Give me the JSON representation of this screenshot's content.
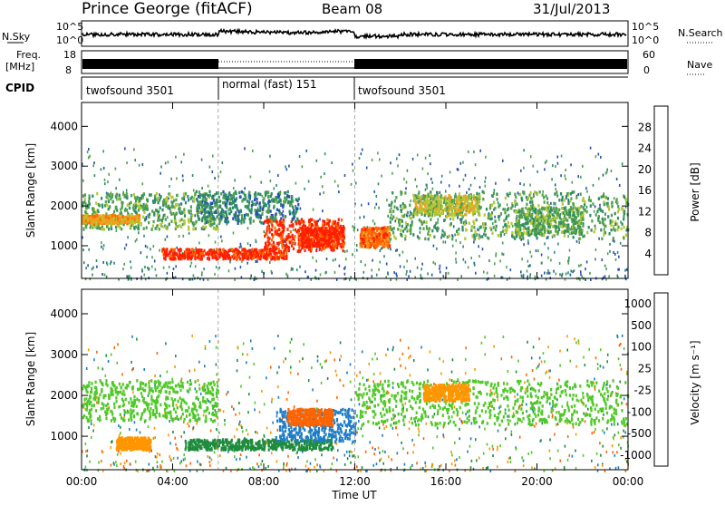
{
  "header": {
    "station": "Prince George (fitACF)",
    "beam": "Beam 08",
    "date": "31/Jul/2013"
  },
  "top_panels": {
    "nsky_label": "N.Sky",
    "nsky_ticks": [
      "10^5",
      "10^0"
    ],
    "nsearch_label": "N.Search",
    "nsearch_ticks": [
      "10^5",
      "10^0"
    ],
    "freq_label_line1": "Freq.",
    "freq_label_line2": "[MHz]",
    "freq_ticks": [
      "18",
      "8"
    ],
    "nave_label": "Nave",
    "nave_ticks": [
      "60",
      "0"
    ],
    "cpid_label": "CPID",
    "cpid_segments": [
      {
        "label": "twofsound 3501",
        "start_hour": 0,
        "end_hour": 6
      },
      {
        "label": "normal (fast) 151",
        "start_hour": 6,
        "end_hour": 12
      },
      {
        "label": "twofsound 3501",
        "start_hour": 12,
        "end_hour": 24
      }
    ]
  },
  "chart_data": [
    {
      "type": "heatmap",
      "title": "",
      "xlabel": "Time UT",
      "ylabel": "Slant Range [km]",
      "xlim": [
        0,
        24
      ],
      "ylim": [
        180,
        4600
      ],
      "y_ticks": [
        1000,
        2000,
        3000,
        4000
      ],
      "colorbar_label": "Power [dB]",
      "colorbar_ticks": [
        "4",
        "8",
        "12",
        "16",
        "20",
        "24",
        "28"
      ],
      "colorbar_colors": [
        "#1e1eff",
        "#2850b4",
        "#2e8c66",
        "#50a050",
        "#b4c832",
        "#f0a01e",
        "#ff6a00",
        "#ff1e00"
      ],
      "regions": [
        {
          "t0": 0.0,
          "t1": 6.0,
          "r0": 1450,
          "r1": 2350,
          "level": 12
        },
        {
          "t0": 0.0,
          "t1": 2.5,
          "r0": 1600,
          "r1": 1800,
          "level": 20
        },
        {
          "t0": 5.0,
          "t1": 9.5,
          "r0": 1600,
          "r1": 2400,
          "level": 8
        },
        {
          "t0": 3.5,
          "t1": 9.0,
          "r0": 700,
          "r1": 950,
          "level": 28
        },
        {
          "t0": 8.0,
          "t1": 11.5,
          "r0": 900,
          "r1": 1700,
          "level": 28
        },
        {
          "t0": 9.5,
          "t1": 11.5,
          "r0": 1000,
          "r1": 1500,
          "level": 28
        },
        {
          "t0": 12.2,
          "t1": 13.5,
          "r0": 1000,
          "r1": 1500,
          "level": 24
        },
        {
          "t0": 13.5,
          "t1": 24.0,
          "r0": 1200,
          "r1": 2400,
          "level": 12
        },
        {
          "t0": 14.5,
          "t1": 17.5,
          "r0": 1800,
          "r1": 2300,
          "level": 16
        },
        {
          "t0": 19.0,
          "t1": 22.0,
          "r0": 1300,
          "r1": 2000,
          "level": 12
        }
      ]
    },
    {
      "type": "heatmap",
      "title": "",
      "xlabel": "Time UT",
      "ylabel": "Slant Range [km]",
      "xlim": [
        0,
        24
      ],
      "ylim": [
        180,
        4600
      ],
      "x_ticks": [
        "00:00",
        "04:00",
        "08:00",
        "12:00",
        "16:00",
        "20:00",
        "00:00"
      ],
      "y_ticks": [
        1000,
        2000,
        3000,
        4000
      ],
      "colorbar_label": "Velocity [m s⁻¹]",
      "colorbar_ticks": [
        "1000",
        "500",
        "100",
        "25",
        "-25",
        "-100",
        "-500",
        "-1000"
      ],
      "colorbar_colors": [
        "#2a2aff",
        "#1e7dc8",
        "#1e8c3c",
        "#50c828",
        "#c8c8c8",
        "#ff9600",
        "#ff6400",
        "#ff0000"
      ],
      "regions": [
        {
          "t0": 0.0,
          "t1": 6.0,
          "r0": 1400,
          "r1": 2400,
          "level": 0
        },
        {
          "t0": 1.5,
          "t1": 3.0,
          "r0": 700,
          "r1": 1000,
          "level": -100
        },
        {
          "t0": 4.5,
          "t1": 11.0,
          "r0": 700,
          "r1": 950,
          "level": 100
        },
        {
          "t0": 8.5,
          "t1": 12.0,
          "r0": 900,
          "r1": 1700,
          "level": 500
        },
        {
          "t0": 9.0,
          "t1": 11.0,
          "r0": 1300,
          "r1": 1700,
          "level": -500
        },
        {
          "t0": 12.0,
          "t1": 24.0,
          "r0": 1300,
          "r1": 2400,
          "level": 0
        },
        {
          "t0": 15.0,
          "t1": 17.0,
          "r0": 1900,
          "r1": 2300,
          "level": -100
        }
      ]
    }
  ]
}
